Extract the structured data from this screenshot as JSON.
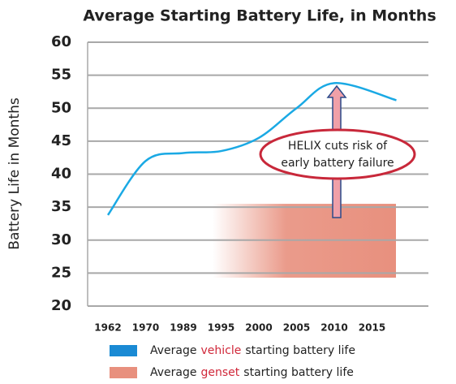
{
  "chart_data": {
    "type": "line",
    "title": "Average Starting Battery Life, in Months",
    "y_label": "Battery Life in Months",
    "categories": [
      "1962",
      "1970",
      "1989",
      "1995",
      "2000",
      "2005",
      "2010",
      "2015"
    ],
    "series": [
      {
        "name": [
          "Average",
          "vehicle",
          "starting battery life"
        ],
        "color": "#1aa9e4",
        "legend_color": "#1a8ad4",
        "values": [
          33.8,
          42,
          43.2,
          43.5,
          45.5,
          50,
          53.8,
          51.2
        ]
      },
      {
        "name": [
          "Average",
          "genset",
          "starting battery life"
        ],
        "color": "#e8907e",
        "legend_color": "#e8907e",
        "band": [
          24.3,
          35.5
        ]
      }
    ],
    "annotation": [
      "HELIX cuts risk of",
      "early battery failure"
    ],
    "ylim": [
      20,
      60
    ],
    "yticks": [
      20,
      25,
      30,
      35,
      40,
      45,
      50,
      55,
      60
    ],
    "grid": true
  }
}
